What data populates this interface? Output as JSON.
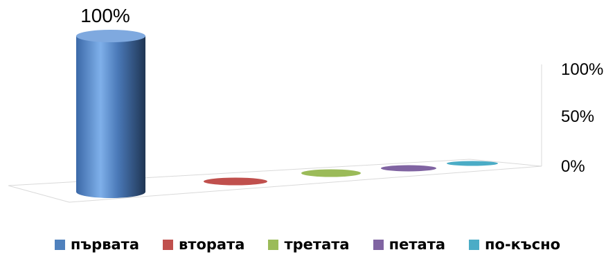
{
  "chart_data": {
    "type": "bar",
    "categories": [
      "първата",
      "втората",
      "третата",
      "петата",
      "по-късно"
    ],
    "series": [
      {
        "values": [
          100,
          0,
          0,
          0,
          0
        ]
      }
    ],
    "colors": [
      "#4f81bd",
      "#c0504d",
      "#9bbb59",
      "#8064a2",
      "#4bacc6"
    ],
    "data_labels": [
      "100%"
    ],
    "y_ticks": [
      "0%",
      "50%",
      "100%"
    ],
    "ylim": [
      0,
      100
    ],
    "grid": false,
    "legend_position": "bottom"
  }
}
